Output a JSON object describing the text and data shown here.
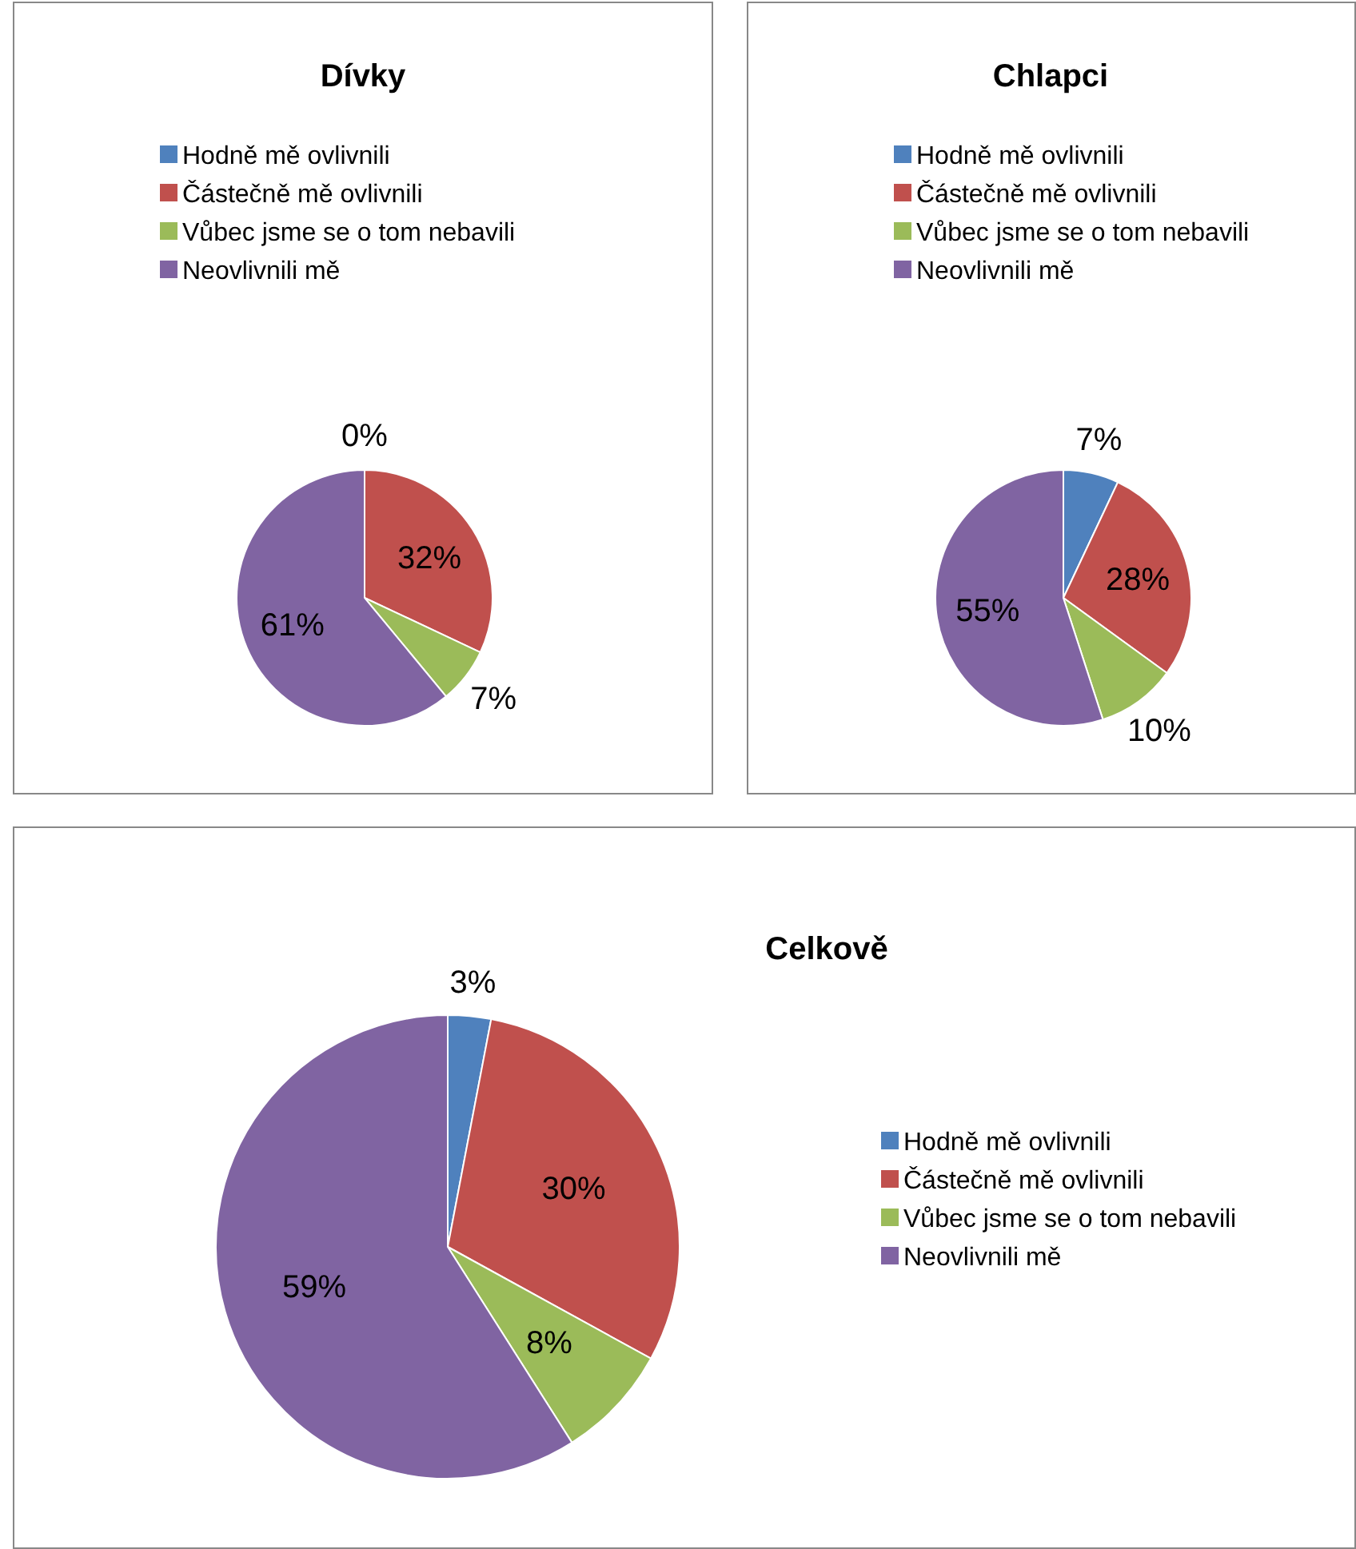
{
  "chart_data": [
    {
      "type": "pie",
      "title": "Dívky",
      "categories": [
        "Hodně mě ovlivnili",
        "Částečně mě ovlivnili",
        "Vůbec jsme se o tom nebavili",
        "Neovlivnili mě"
      ],
      "values": [
        0,
        32,
        7,
        61
      ],
      "value_labels": [
        "0%",
        "32%",
        "7%",
        "61%"
      ],
      "colors": [
        "#4f81bd",
        "#c0504d",
        "#9bbb59",
        "#8064a2"
      ],
      "legend": "top"
    },
    {
      "type": "pie",
      "title": "Chlapci",
      "categories": [
        "Hodně mě ovlivnili",
        "Částečně mě ovlivnili",
        "Vůbec jsme se o tom nebavili",
        "Neovlivnili mě"
      ],
      "values": [
        7,
        28,
        10,
        55
      ],
      "value_labels": [
        "7%",
        "28%",
        "10%",
        "55%"
      ],
      "colors": [
        "#4f81bd",
        "#c0504d",
        "#9bbb59",
        "#8064a2"
      ],
      "legend": "top"
    },
    {
      "type": "pie",
      "title": "Celkově",
      "categories": [
        "Hodně mě ovlivnili",
        "Částečně mě ovlivnili",
        "Vůbec jsme se o tom nebavili",
        "Neovlivnili mě"
      ],
      "values": [
        3,
        30,
        8,
        59
      ],
      "value_labels": [
        "3%",
        "30%",
        "8%",
        "59%"
      ],
      "colors": [
        "#4f81bd",
        "#c0504d",
        "#9bbb59",
        "#8064a2"
      ],
      "legend": "right"
    }
  ]
}
